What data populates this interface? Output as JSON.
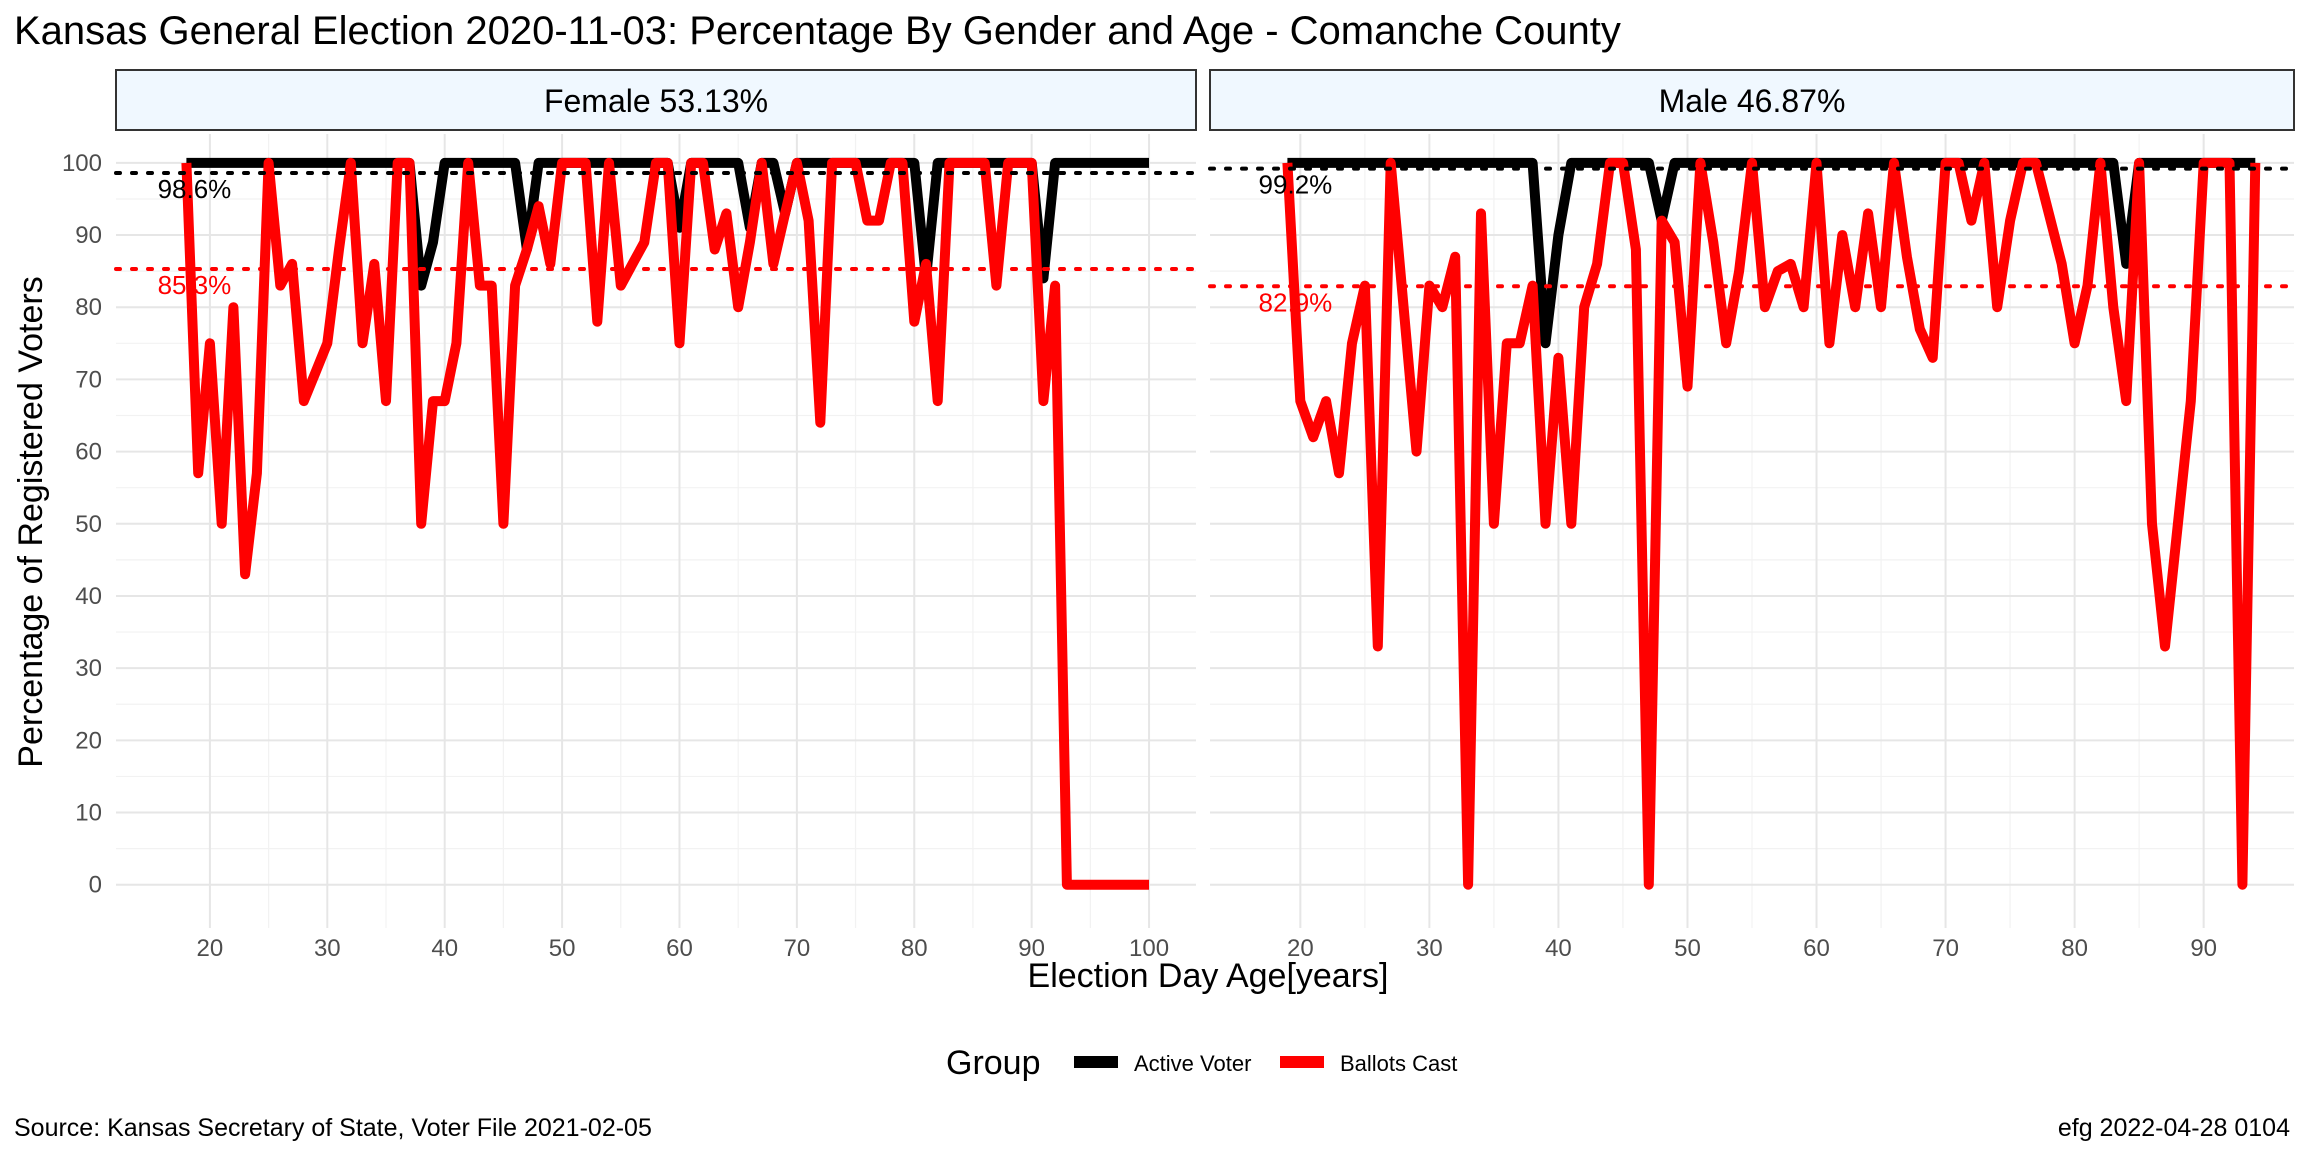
{
  "title": "Kansas General Election 2020-11-03:  Percentage By Gender and Age - Comanche County",
  "xlabel": "Election Day Age[years]",
  "ylabel": "Percentage of Registered Voters",
  "source": "Source:  Kansas Secretary of State, Voter File  2021-02-05",
  "stamp": "efg 2022-04-28 0104",
  "legend": {
    "title": "Group",
    "items": [
      {
        "label": "Active Voter",
        "color": "#000000"
      },
      {
        "label": "Ballots Cast",
        "color": "#ff0000"
      }
    ]
  },
  "chart_data": [
    {
      "type": "line",
      "panel": "Female 53.13%",
      "xlim": [
        12,
        104
      ],
      "ylim": [
        -6,
        104
      ],
      "xticks": [
        20,
        30,
        40,
        50,
        60,
        70,
        80,
        90,
        100
      ],
      "yticks": [
        0,
        10,
        20,
        30,
        40,
        50,
        60,
        70,
        80,
        90,
        100
      ],
      "x": [
        18,
        19,
        20,
        21,
        22,
        23,
        24,
        25,
        26,
        27,
        28,
        29,
        30,
        31,
        32,
        33,
        34,
        35,
        36,
        37,
        38,
        39,
        40,
        41,
        42,
        43,
        44,
        45,
        46,
        47,
        48,
        49,
        50,
        51,
        52,
        53,
        54,
        55,
        56,
        57,
        58,
        59,
        60,
        61,
        62,
        63,
        64,
        65,
        66,
        67,
        68,
        69,
        70,
        71,
        72,
        73,
        74,
        75,
        76,
        77,
        78,
        79,
        80,
        81,
        82,
        83,
        84,
        85,
        86,
        87,
        88,
        89,
        90,
        91,
        92,
        93,
        94,
        95,
        96,
        97,
        98,
        99,
        100
      ],
      "series": [
        {
          "name": "Active Voter",
          "color": "#000000",
          "values": [
            100,
            100,
            100,
            100,
            100,
            100,
            100,
            100,
            100,
            100,
            100,
            100,
            100,
            100,
            100,
            100,
            100,
            100,
            100,
            100,
            83,
            89,
            100,
            100,
            100,
            100,
            100,
            100,
            100,
            88,
            100,
            100,
            100,
            100,
            100,
            100,
            100,
            100,
            100,
            100,
            100,
            100,
            91,
            100,
            100,
            100,
            100,
            100,
            91,
            100,
            100,
            93,
            100,
            100,
            100,
            100,
            100,
            100,
            100,
            100,
            100,
            100,
            100,
            84,
            100,
            100,
            100,
            100,
            100,
            100,
            100,
            100,
            100,
            84,
            100,
            100,
            100,
            100,
            100,
            100,
            100,
            100,
            100
          ]
        },
        {
          "name": "Ballots Cast",
          "color": "#ff0000",
          "values": [
            100,
            57,
            75,
            50,
            80,
            43,
            57,
            100,
            83,
            86,
            67,
            71,
            75,
            88,
            100,
            75,
            86,
            67,
            100,
            100,
            50,
            67,
            67,
            75,
            100,
            83,
            83,
            50,
            83,
            88,
            94,
            86,
            100,
            100,
            100,
            78,
            100,
            83,
            86,
            89,
            100,
            100,
            75,
            100,
            100,
            88,
            93,
            80,
            89,
            100,
            86,
            93,
            100,
            92,
            64,
            100,
            100,
            100,
            92,
            92,
            100,
            100,
            78,
            86,
            67,
            100,
            100,
            100,
            100,
            83,
            100,
            100,
            100,
            67,
            83,
            0,
            0,
            0,
            0,
            0,
            0,
            0,
            0
          ]
        }
      ],
      "hlines": [
        {
          "value": 98.6,
          "label": "98.6%",
          "color": "#000000"
        },
        {
          "value": 85.3,
          "label": "85.3%",
          "color": "#ff0000"
        }
      ]
    },
    {
      "type": "line",
      "panel": "Male 46.87%",
      "xlim": [
        13,
        97
      ],
      "ylim": [
        -6,
        104
      ],
      "xticks": [
        20,
        30,
        40,
        50,
        60,
        70,
        80,
        90
      ],
      "yticks": [
        0,
        10,
        20,
        30,
        40,
        50,
        60,
        70,
        80,
        90,
        100
      ],
      "x": [
        19,
        20,
        21,
        22,
        23,
        24,
        25,
        26,
        27,
        28,
        29,
        30,
        31,
        32,
        33,
        34,
        35,
        36,
        37,
        38,
        39,
        40,
        41,
        42,
        43,
        44,
        45,
        46,
        47,
        48,
        49,
        50,
        51,
        52,
        53,
        54,
        55,
        56,
        57,
        58,
        59,
        60,
        61,
        62,
        63,
        64,
        65,
        66,
        67,
        68,
        69,
        70,
        71,
        72,
        73,
        74,
        75,
        76,
        77,
        78,
        79,
        80,
        81,
        82,
        83,
        84,
        85,
        86,
        87,
        88,
        89,
        90,
        91,
        92,
        93,
        94
      ],
      "series": [
        {
          "name": "Active Voter",
          "color": "#000000",
          "values": [
            100,
            100,
            100,
            100,
            100,
            100,
            100,
            100,
            100,
            100,
            100,
            100,
            100,
            100,
            100,
            100,
            100,
            100,
            100,
            100,
            75,
            90,
            100,
            100,
            100,
            100,
            100,
            100,
            100,
            92,
            100,
            100,
            100,
            100,
            100,
            100,
            100,
            100,
            100,
            100,
            100,
            100,
            100,
            100,
            100,
            100,
            100,
            100,
            100,
            100,
            100,
            100,
            100,
            100,
            100,
            100,
            100,
            100,
            100,
            100,
            100,
            100,
            100,
            100,
            100,
            86,
            100,
            100,
            100,
            100,
            100,
            100,
            100,
            100,
            100,
            100
          ]
        },
        {
          "name": "Ballots Cast",
          "color": "#ff0000",
          "values": [
            100,
            67,
            62,
            67,
            57,
            75,
            83,
            33,
            100,
            80,
            60,
            83,
            80,
            87,
            0,
            93,
            50,
            75,
            75,
            83,
            50,
            73,
            50,
            80,
            86,
            100,
            100,
            88,
            0,
            92,
            89,
            69,
            100,
            89,
            75,
            85,
            100,
            80,
            85,
            86,
            80,
            100,
            75,
            90,
            80,
            93,
            80,
            100,
            87,
            77,
            73,
            100,
            100,
            92,
            100,
            80,
            92,
            100,
            100,
            93,
            86,
            75,
            83,
            100,
            80,
            67,
            100,
            50,
            33,
            50,
            67,
            100,
            100,
            100,
            0,
            100
          ]
        }
      ],
      "hlines": [
        {
          "value": 99.2,
          "label": "99.2%",
          "color": "#000000"
        },
        {
          "value": 82.9,
          "label": "82.9%",
          "color": "#ff0000"
        }
      ]
    }
  ]
}
